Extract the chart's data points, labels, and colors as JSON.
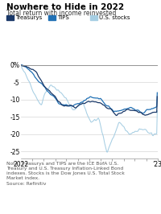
{
  "title": "Nowhere to Hide in 2022",
  "subtitle": "Total return with income reinvested",
  "note": "Note: Treasurys and TIPS are the ICE BofA U.S.\nTreasury and U.S. Treasury Inflation-Linked Bond\nindexes. Stocks is the Dow Jones U.S. Total Stock\nMarket index.\nSource: Refinitiv",
  "legend": [
    "Treasurys",
    "TIPS",
    "U.S. stocks"
  ],
  "colors": {
    "treasurys": "#1a3868",
    "tips": "#2171b5",
    "stocks": "#a6cee3"
  },
  "ylim": [
    -27,
    1.5
  ],
  "yticks": [
    0,
    -5,
    -10,
    -15,
    -20,
    -25
  ],
  "background": "#ffffff",
  "grid_color": "#cccccc",
  "spine_color": "#999999"
}
